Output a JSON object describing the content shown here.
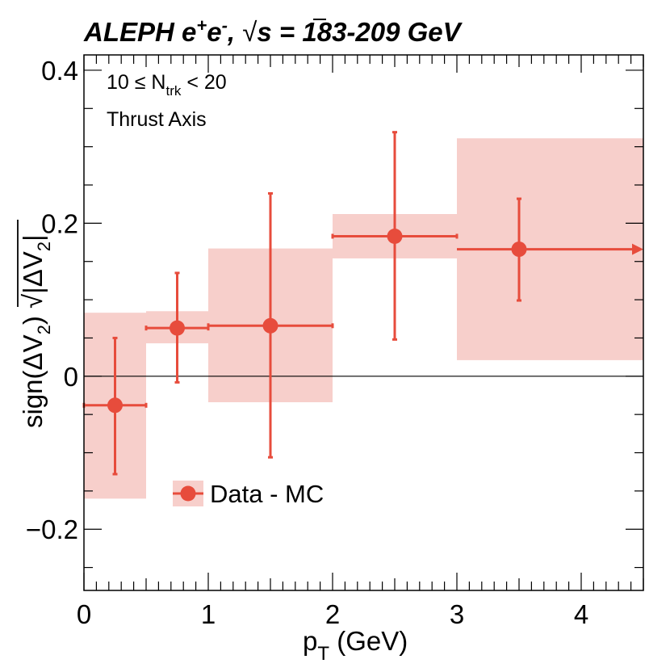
{
  "chart_data": {
    "type": "scatter",
    "title": {
      "experiment": "ALEPH",
      "beam": "e",
      "plus": "+",
      "minus": "-",
      "sqrt_symbol": "√",
      "s": "s",
      "energy": "= 183-209 GeV"
    },
    "annotations": {
      "ntrk_prefix": "10 ≤ N",
      "ntrk_sub": "trk",
      "ntrk_suffix": "< 20",
      "axis_label": "Thrust Axis"
    },
    "xlabel": {
      "main": "p",
      "sub": "T",
      "unit": "(GeV)"
    },
    "ylabel": {
      "sign_part": "sign(ΔV",
      "sub": "2",
      "close": ")",
      "sqrt_symbol": "√",
      "abs_part": "|ΔV",
      "abs_sub": "2",
      "abs_close": "|"
    },
    "xlim": [
      0,
      4.5
    ],
    "ylim": [
      -0.28,
      0.42
    ],
    "xticks": [
      0,
      1,
      2,
      3,
      4
    ],
    "xtick_labels": [
      "0",
      "1",
      "2",
      "3",
      "4"
    ],
    "yticks": [
      -0.2,
      0,
      0.2,
      0.4
    ],
    "ytick_labels": [
      "−0.2",
      "0",
      "0.2",
      "0.4"
    ],
    "legend": {
      "label": "Data - MC",
      "placement": "lower-left"
    },
    "colors": {
      "marker": "#e74c3c",
      "band": "#f7cfcb",
      "axis": "#000000"
    },
    "series": [
      {
        "name": "Data - MC",
        "points": [
          {
            "x": 0.25,
            "xlo": 0.0,
            "xhi": 0.5,
            "y": -0.038,
            "ylo": -0.128,
            "yhi": 0.05,
            "syslo": -0.16,
            "syshi": 0.083
          },
          {
            "x": 0.75,
            "xlo": 0.5,
            "xhi": 1.0,
            "y": 0.063,
            "ylo": -0.008,
            "yhi": 0.135,
            "syslo": 0.043,
            "syshi": 0.085
          },
          {
            "x": 1.5,
            "xlo": 1.0,
            "xhi": 2.0,
            "y": 0.066,
            "ylo": -0.106,
            "yhi": 0.239,
            "syslo": -0.034,
            "syshi": 0.167
          },
          {
            "x": 2.5,
            "xlo": 2.0,
            "xhi": 3.0,
            "y": 0.183,
            "ylo": 0.048,
            "yhi": 0.319,
            "syslo": 0.154,
            "syshi": 0.212
          },
          {
            "x": 3.5,
            "xlo": 3.0,
            "xhi": 4.5,
            "y": 0.166,
            "ylo": 0.099,
            "yhi": 0.232,
            "syslo": 0.021,
            "syshi": 0.311
          }
        ]
      }
    ]
  }
}
